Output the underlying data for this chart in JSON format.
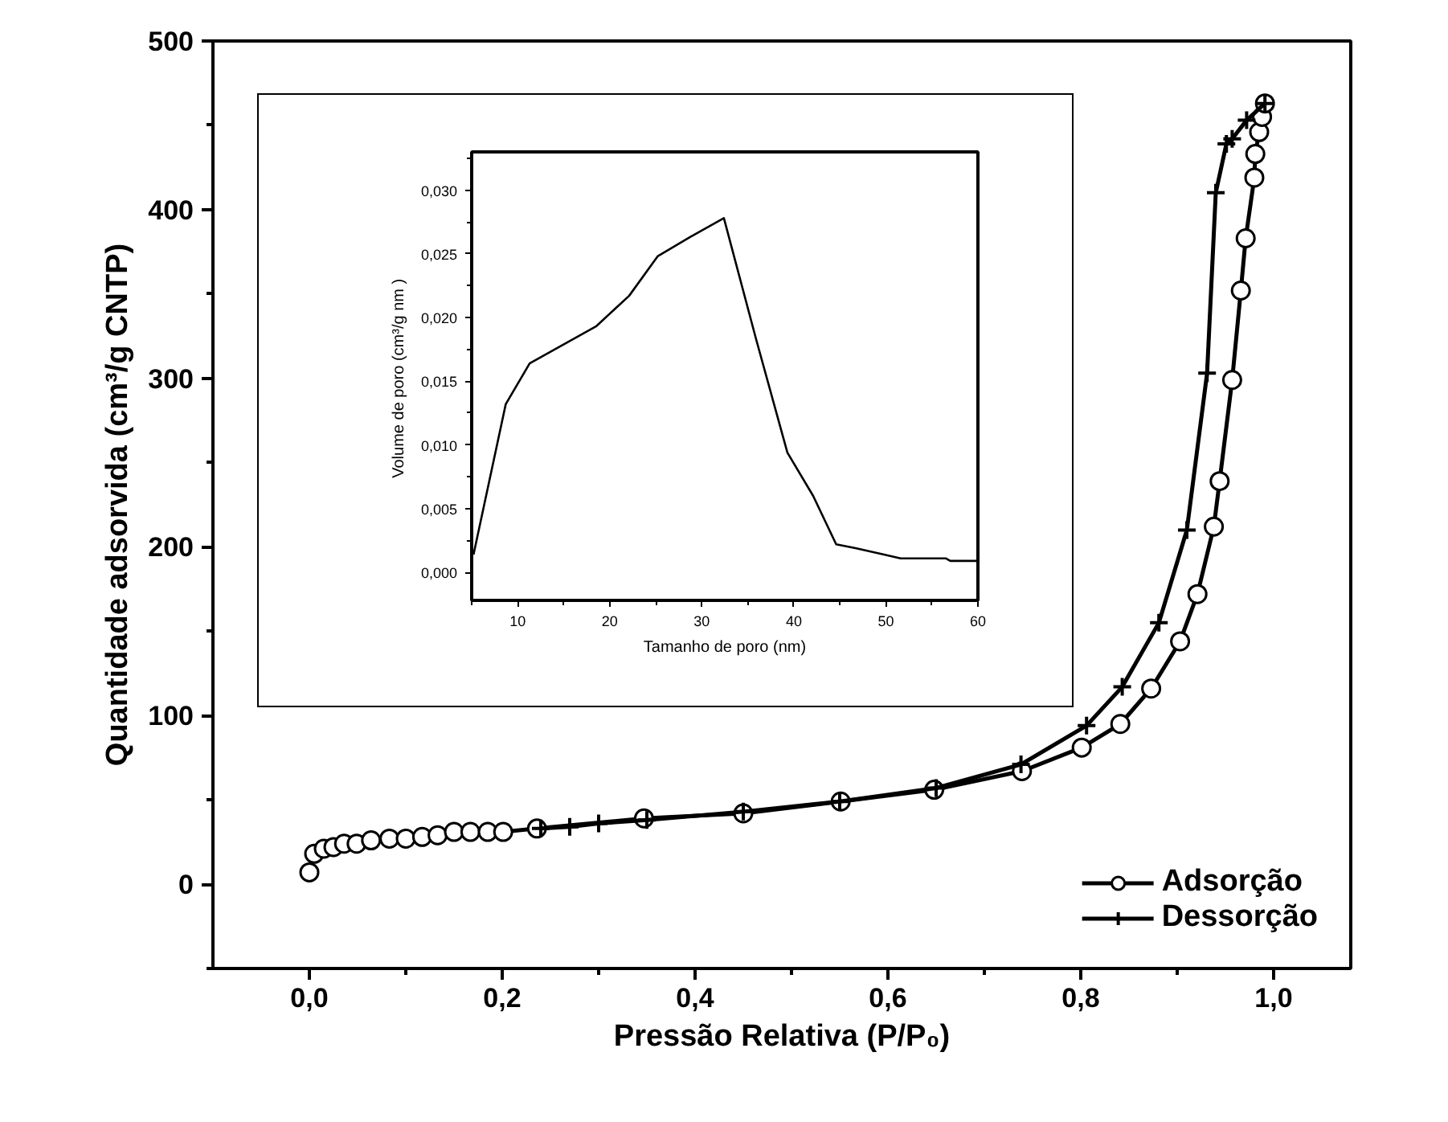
{
  "chart_data": [
    {
      "type": "line",
      "xlabel": "Pressão Relativa (P/P₀)",
      "ylabel": "Quantidade adsorvida (cm³/g CNTP)",
      "xlim": [
        -0.1,
        1.08
      ],
      "ylim": [
        -50,
        500
      ],
      "xticks": [
        {
          "value": 0,
          "label": "0,0"
        },
        {
          "value": 0.1,
          "label": null
        },
        {
          "value": 0.2,
          "label": "0,2"
        },
        {
          "value": 0.3,
          "label": null
        },
        {
          "value": 0.4,
          "label": "0,4"
        },
        {
          "value": 0.5,
          "label": null
        },
        {
          "value": 0.6,
          "label": "0,6"
        },
        {
          "value": 0.7,
          "label": null
        },
        {
          "value": 0.8,
          "label": "0,8"
        },
        {
          "value": 0.9,
          "label": null
        },
        {
          "value": 1.0,
          "label": "1,0"
        }
      ],
      "yticks": [
        {
          "value": -50,
          "label": null
        },
        0,
        {
          "value": 50,
          "label": null
        },
        100,
        {
          "value": 150,
          "label": null
        },
        200,
        {
          "value": 250,
          "label": null
        },
        300,
        {
          "value": 350,
          "label": null
        },
        400,
        {
          "value": 450,
          "label": null
        },
        500
      ],
      "grid": false,
      "legend": "bottom right",
      "line_style": "solid",
      "series": [
        {
          "name": "Adsorção",
          "color": "#000000",
          "marker": "circle",
          "x": [
            0.0,
            0.005,
            0.015,
            0.025,
            0.036,
            0.049,
            0.064,
            0.083,
            0.1,
            0.117,
            0.133,
            0.15,
            0.167,
            0.185,
            0.201,
            0.236,
            0.347,
            0.45,
            0.551,
            0.648,
            0.739,
            0.801,
            0.841,
            0.873,
            0.903,
            0.921,
            0.938,
            0.944,
            0.957,
            0.966,
            0.971,
            0.98,
            0.981,
            0.985,
            0.988,
            0.991
          ],
          "values": [
            7,
            18,
            21,
            22,
            24,
            24,
            26,
            27,
            27,
            28,
            29,
            31,
            31,
            31,
            31,
            33,
            39,
            42,
            49,
            56,
            67,
            81,
            95,
            116,
            144,
            172,
            212,
            239,
            299,
            352,
            383,
            419,
            433,
            446,
            455,
            463
          ]
        },
        {
          "name": "Dessorção",
          "color": "#000000",
          "marker": "cross",
          "x": [
            0.991,
            0.972,
            0.957,
            0.951,
            0.94,
            0.931,
            0.91,
            0.881,
            0.843,
            0.806,
            0.738,
            0.65,
            0.55,
            0.45,
            0.35,
            0.3,
            0.27,
            0.24
          ],
          "values": [
            463,
            453,
            442,
            439,
            410,
            303,
            210,
            155,
            117,
            94,
            71,
            57,
            49,
            43,
            38,
            36,
            34,
            33
          ]
        }
      ]
    },
    {
      "type": "line",
      "xlabel": "Tamanho de poro (nm)",
      "ylabel": "Volume de poro  (cm³/g nm )",
      "xlim": [
        5,
        60
      ],
      "ylim": [
        -0.0022,
        0.033
      ],
      "xticks": [
        {
          "value": 5,
          "label": null
        },
        10,
        {
          "value": 15,
          "label": null
        },
        20,
        {
          "value": 25,
          "label": null
        },
        30,
        {
          "value": 35,
          "label": null
        },
        40,
        {
          "value": 45,
          "label": null
        },
        50,
        {
          "value": 55,
          "label": null
        },
        60
      ],
      "yticks": [
        {
          "value": 0,
          "label": "0,000"
        },
        {
          "value": 0.0025,
          "label": null
        },
        {
          "value": 0.005,
          "label": "0,005"
        },
        {
          "value": 0.0075,
          "label": null
        },
        {
          "value": 0.01,
          "label": "0,010"
        },
        {
          "value": 0.0125,
          "label": null
        },
        {
          "value": 0.015,
          "label": "0,015"
        },
        {
          "value": 0.0175,
          "label": null
        },
        {
          "value": 0.02,
          "label": "0,020"
        },
        {
          "value": 0.0225,
          "label": null
        },
        {
          "value": 0.025,
          "label": "0,025"
        },
        {
          "value": 0.0275,
          "label": null
        },
        {
          "value": 0.03,
          "label": "0,030"
        },
        {
          "value": 0.0325,
          "label": null
        }
      ],
      "grid": false,
      "line_style": "solid",
      "series": [
        {
          "color": "#000000",
          "x": [
            5.2,
            8.7,
            11.3,
            18.5,
            22.1,
            25.2,
            28.7,
            32.4,
            35.9,
            39.3,
            42.1,
            44.6,
            46.7,
            49.8,
            51.6,
            56.5,
            57,
            60
          ],
          "values": [
            0.0014,
            0.0132,
            0.0164,
            0.0193,
            0.0217,
            0.0248,
            0.0263,
            0.0278,
            0.0183,
            0.0094,
            0.006,
            0.0022,
            0.0019,
            0.0014,
            0.0011,
            0.0011,
            0.0009,
            0.0009
          ]
        }
      ]
    }
  ]
}
